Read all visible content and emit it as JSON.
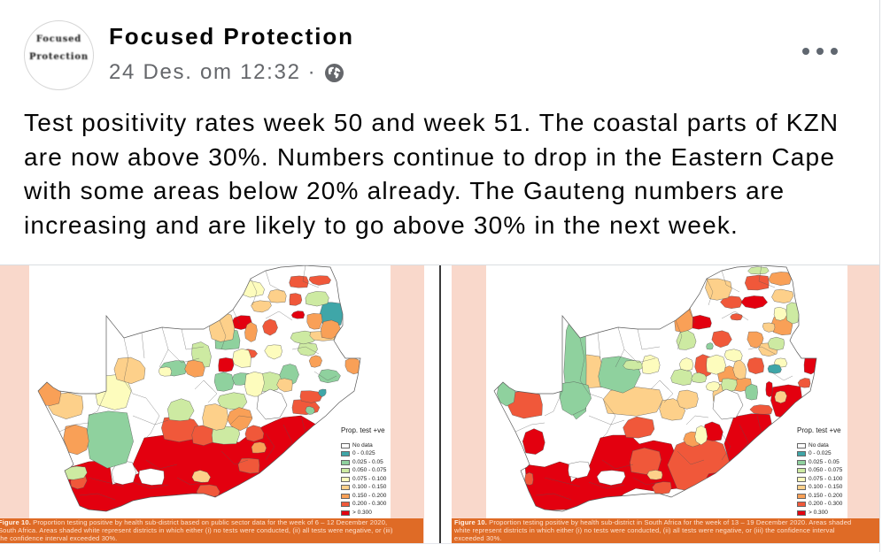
{
  "post": {
    "author": "Focused Protection",
    "avatar_text": [
      "Focused",
      "Protection"
    ],
    "timestamp": "24 Des. om 12:32",
    "separator": "·",
    "privacy_icon": "globe-icon",
    "more_icon": "more-options-icon",
    "body_lines": [
      "Test positivity rates week 50 and week 51. The coastal parts of KZN",
      "are now above 30%. Numbers continue to drop in the Eastern Cape",
      "with some areas below 20% already. The Gauteng numbers are",
      "increasing and are likely to go above 30% in the next week."
    ]
  },
  "legend": {
    "title": "Prop. test +ve",
    "items": [
      {
        "label": "No data",
        "color": "#ffffff"
      },
      {
        "label": "0 - 0.025",
        "color": "#3fa6a8"
      },
      {
        "label": "0.025 - 0.05",
        "color": "#8fd19e"
      },
      {
        "label": "0.050 - 0.075",
        "color": "#cdeaa2"
      },
      {
        "label": "0.075 - 0.100",
        "color": "#fdfcbd"
      },
      {
        "label": "0.100 - 0.150",
        "color": "#fdd08a"
      },
      {
        "label": "0.150 - 0.200",
        "color": "#f9a057"
      },
      {
        "label": "0.200 - 0.300",
        "color": "#f0583a"
      },
      {
        "label": "> 0.300",
        "color": "#e3000f"
      }
    ]
  },
  "images": [
    {
      "caption": {
        "label": "Figure 10.",
        "lines": [
          "Proportion testing positive by health sub-district based on public sector data for the week of 6 – 12 December 2020,",
          "South Africa. Areas shaded white represent districts in which either (i) no tests were conducted, (ii) all tests were negative, or (iii)",
          "the confidence interval exceeded 30%."
        ]
      }
    },
    {
      "caption": {
        "label": "Figure 10.",
        "lines": [
          "Proportion testing positive by health sub-district in South Africa for the week of 13 – 19 December 2020. Areas shaded",
          "white represent districts in which either (i) no tests were conducted, (ii) all tests were negative, or (iii) the confidence interval",
          "exceeded 30%."
        ]
      }
    }
  ],
  "colors": {
    "caption_bg": "#df6b26",
    "page_margin_pink": "#f9d8cb",
    "meta_gray": "#65676b"
  }
}
